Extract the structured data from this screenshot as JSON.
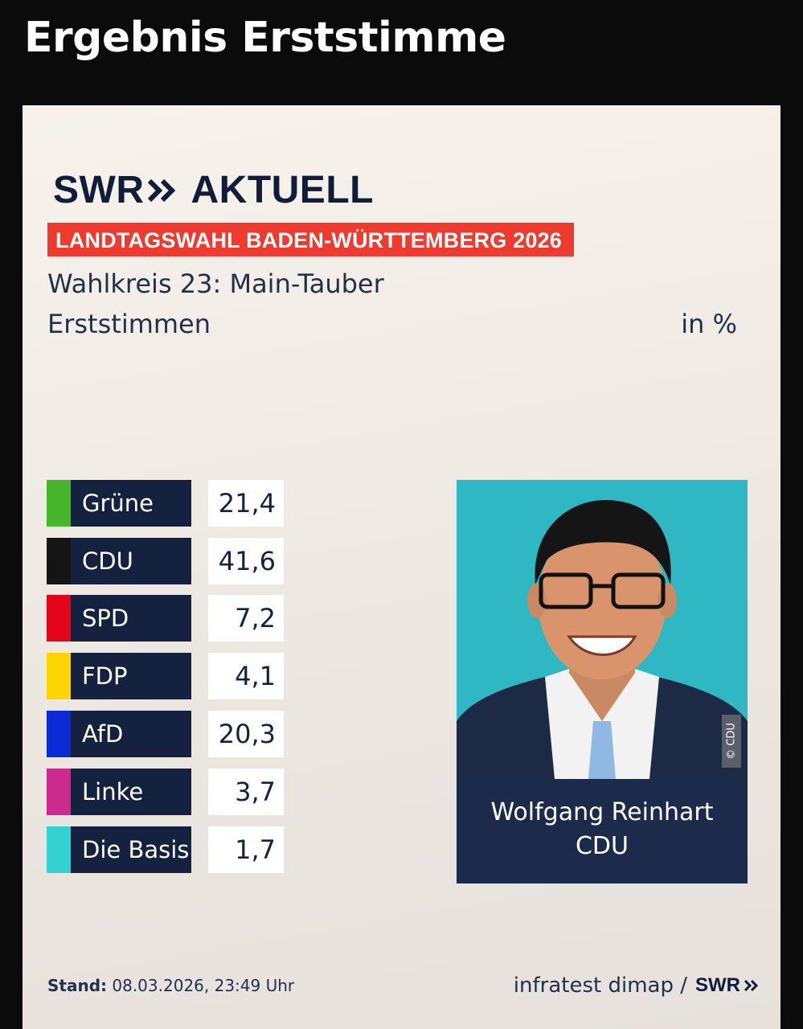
{
  "page": {
    "heading": "Ergebnis Erststimme"
  },
  "card": {
    "logo": {
      "left": "SWR",
      "right": "AKTUELL"
    },
    "banner": "LANDTAGSWAHL BADEN-WÜRTTEMBERG 2026",
    "subtitle": "Wahlkreis 23: Main-Tauber",
    "vote_type": "Erststimmen",
    "unit": "in %",
    "results": [
      {
        "party": "Grüne",
        "value": "21,4",
        "color": "#46b52a"
      },
      {
        "party": "CDU",
        "value": "41,6",
        "color": "#151515"
      },
      {
        "party": "SPD",
        "value": "7,2",
        "color": "#e3061a"
      },
      {
        "party": "FDP",
        "value": "4,1",
        "color": "#ffd400"
      },
      {
        "party": "AfD",
        "value": "20,3",
        "color": "#0b2bd6"
      },
      {
        "party": "Linke",
        "value": "3,7",
        "color": "#cc2a8c"
      },
      {
        "party": "Die Basis",
        "value": "1,7",
        "color": "#33d1cf"
      }
    ],
    "winner": {
      "name": "Wolfgang Reinhart",
      "party": "CDU",
      "photo_credit": "© CDU",
      "photo_background": "#2fb8c3"
    },
    "footer": {
      "stand_label": "Stand:",
      "stand_value": "08.03.2026, 23:49 Uhr",
      "source": "infratest dimap /",
      "source_brand": "SWR"
    }
  },
  "colors": {
    "navy": "#14213f",
    "banner_red": "#ef3b2f"
  }
}
